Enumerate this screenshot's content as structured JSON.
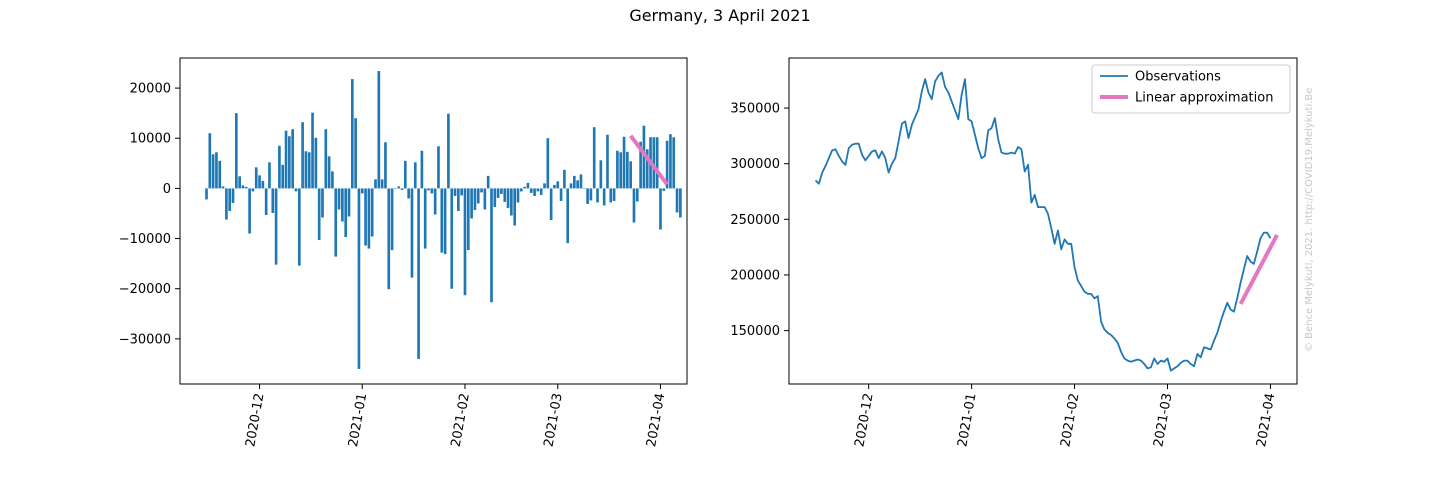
{
  "figure": {
    "title": "Germany, 3 April 2021",
    "watermark": "© Bence Melykuti, 2021. http://COVID19.Melykuti.Be"
  },
  "colors": {
    "bars": "#1f77b4",
    "observations": "#1f77b4",
    "linear": "#e377c2",
    "axes": "#000000"
  },
  "chart_data": [
    {
      "type": "bar",
      "title": "",
      "xlabel": "",
      "ylabel": "",
      "x_tick_labels": [
        "2020-12",
        "2021-01",
        "2021-02",
        "2021-03",
        "2021-04"
      ],
      "x_tick_dates": [
        "2020-12-01",
        "2021-01-01",
        "2021-02-01",
        "2021-03-01",
        "2021-04-01"
      ],
      "x_range": [
        "2020-11-07",
        "2021-04-09"
      ],
      "y_ticks": [
        -30000,
        -20000,
        -10000,
        0,
        10000,
        20000
      ],
      "y_tick_labels": [
        "−30000",
        "−20000",
        "−10000",
        "0",
        "10000",
        "20000"
      ],
      "ylim": [
        -39000,
        26000
      ],
      "dates_start": "2020-11-15",
      "values": [
        -2200,
        11000,
        6800,
        7200,
        5500,
        400,
        -6200,
        -4500,
        -2900,
        15000,
        2400,
        600,
        300,
        -9000,
        -600,
        4200,
        2600,
        1500,
        -5300,
        5200,
        -4900,
        -15200,
        8500,
        4700,
        11500,
        10400,
        11800,
        -600,
        -15400,
        13200,
        7400,
        7200,
        15100,
        10100,
        -10300,
        -5800,
        11800,
        6400,
        3400,
        -13600,
        -4200,
        -6600,
        -9700,
        -5600,
        21800,
        14000,
        -36000,
        -1000,
        -11400,
        -12000,
        -9600,
        1800,
        23400,
        1800,
        9200,
        -20100,
        -12300,
        -100,
        400,
        -300,
        5500,
        -2000,
        -17800,
        5200,
        -34000,
        7500,
        -12000,
        -400,
        -1000,
        -5200,
        8400,
        -12800,
        -13100,
        14900,
        -20000,
        -1500,
        -4500,
        -1400,
        -21300,
        -12300,
        -6000,
        -4300,
        -3000,
        -800,
        -4200,
        2500,
        -22700,
        -3700,
        -1900,
        -1100,
        -2700,
        -3900,
        -5400,
        -7400,
        -2800,
        -600,
        300,
        1100,
        -900,
        -1500,
        -600,
        -1300,
        1000,
        10000,
        -6300,
        700,
        1400,
        -2500,
        3700,
        -10900,
        1000,
        2500,
        1600,
        2800,
        -100,
        -3100,
        -2400,
        12200,
        -2800,
        5600,
        -3400,
        10700,
        -2800,
        -2500,
        7500,
        7200,
        10300,
        7300,
        5400,
        -6800,
        -2600,
        9300,
        12500,
        7800,
        10200,
        10200,
        10200,
        -8200,
        -500,
        9500,
        10800,
        10200,
        -4800,
        -5800
      ],
      "fit": {
        "name": "Linear approximation",
        "x": [
          "2021-03-23",
          "2021-04-03"
        ],
        "y": [
          10500,
          800
        ]
      }
    },
    {
      "type": "line",
      "title": "",
      "xlabel": "",
      "ylabel": "",
      "x_tick_labels": [
        "2020-12",
        "2021-01",
        "2021-02",
        "2021-03",
        "2021-04"
      ],
      "x_tick_dates": [
        "2020-12-01",
        "2021-01-01",
        "2021-02-01",
        "2021-03-01",
        "2021-04-01"
      ],
      "x_range": [
        "2020-11-07",
        "2021-04-09"
      ],
      "y_ticks": [
        150000,
        200000,
        250000,
        300000,
        350000
      ],
      "y_tick_labels": [
        "150000",
        "200000",
        "250000",
        "300000",
        "350000"
      ],
      "ylim": [
        102000,
        395000
      ],
      "legend_position": "upper right",
      "series": [
        {
          "name": "Observations",
          "dates_start": "2020-11-15",
          "values": [
            285000,
            282000,
            292000,
            298000,
            305000,
            312000,
            313000,
            307000,
            302000,
            299000,
            314000,
            317000,
            318000,
            318000,
            308000,
            303000,
            307000,
            311000,
            312000,
            305000,
            311000,
            305000,
            292000,
            300000,
            305000,
            320000,
            336000,
            338000,
            323000,
            335000,
            342000,
            349000,
            365000,
            376000,
            364000,
            358000,
            374000,
            379000,
            382000,
            369000,
            364000,
            356000,
            348000,
            340000,
            362000,
            376000,
            340000,
            338000,
            326000,
            314000,
            305000,
            307000,
            330000,
            332000,
            341000,
            322000,
            310000,
            309000,
            309000,
            310000,
            309000,
            315000,
            313000,
            293000,
            299000,
            265000,
            272000,
            261000,
            261000,
            261000,
            255000,
            242000,
            228000,
            240000,
            223000,
            232000,
            228000,
            228000,
            207000,
            195000,
            190000,
            185000,
            183000,
            183000,
            179000,
            181000,
            158000,
            151000,
            148000,
            146000,
            143000,
            139000,
            131000,
            125000,
            123000,
            122000,
            123000,
            124000,
            123000,
            120000,
            116000,
            117000,
            125000,
            120000,
            123000,
            122000,
            125000,
            114000,
            116000,
            118000,
            121000,
            123000,
            123000,
            120000,
            118000,
            129000,
            126000,
            135000,
            134000,
            133000,
            141000,
            148000,
            158000,
            167000,
            175000,
            169000,
            167000,
            179000,
            193000,
            205000,
            217000,
            212000,
            210000,
            221000,
            233000,
            238000,
            238000,
            233000
          ]
        },
        {
          "name": "Linear approximation",
          "x": [
            "2021-03-23",
            "2021-04-03"
          ],
          "y": [
            174000,
            236000
          ]
        }
      ]
    }
  ]
}
